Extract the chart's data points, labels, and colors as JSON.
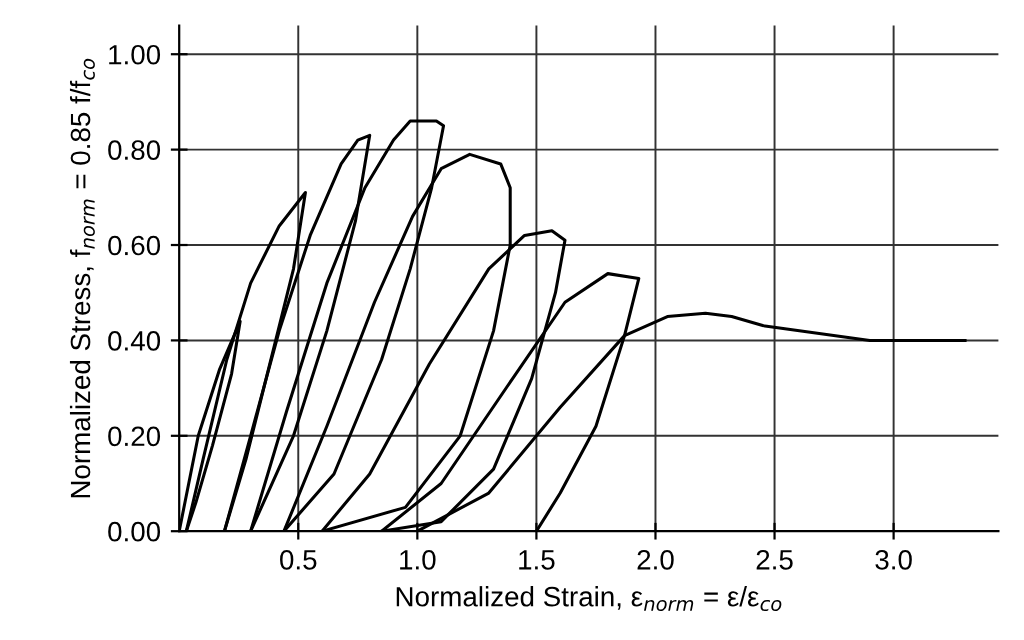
{
  "chart_data": {
    "type": "line",
    "xlabel": "Normalized Strain, ε$_{norm}$ = ε/ε$_{co}$",
    "ylabel": "Normalized Stress, f$_{norm}$ = 0.85 f/f$_{co}$",
    "xlim": [
      0,
      3.44
    ],
    "ylim": [
      0,
      1.06
    ],
    "xticks": [
      0.5,
      {
        "value": 1,
        "label": "1.0"
      },
      1.5,
      {
        "value": 2,
        "label": "2.0"
      },
      2.5,
      {
        "value": 3,
        "label": "3.0"
      }
    ],
    "yticks": [
      {
        "value": 0,
        "label": "0.00"
      },
      {
        "value": 0.2,
        "label": "0.20"
      },
      {
        "value": 0.4,
        "label": "0.40"
      },
      {
        "value": 0.6,
        "label": "0.60"
      },
      {
        "value": 0.8,
        "label": "0.80"
      },
      {
        "value": 1.0,
        "label": "1.00"
      }
    ],
    "grid": true,
    "marker": "none",
    "line_style": "solid",
    "series": [
      {
        "color": "#000000",
        "x": [
          0,
          0.08,
          0.17,
          0.256,
          0.22,
          0.14,
          0.07,
          0.03
        ],
        "values": [
          0,
          0.2,
          0.34,
          0.44,
          0.33,
          0.18,
          0.06,
          0
        ]
      },
      {
        "color": "#000000",
        "x": [
          0.03,
          0.1,
          0.2,
          0.3,
          0.42,
          0.53,
          0.48,
          0.38,
          0.28,
          0.19
        ],
        "values": [
          0,
          0.15,
          0.36,
          0.52,
          0.64,
          0.71,
          0.55,
          0.35,
          0.15,
          0
        ]
      },
      {
        "color": "#000000",
        "x": [
          0.19,
          0.3,
          0.42,
          0.55,
          0.68,
          0.75,
          0.8,
          0.74,
          0.62,
          0.48,
          0.3
        ],
        "values": [
          0,
          0.2,
          0.42,
          0.62,
          0.77,
          0.82,
          0.83,
          0.65,
          0.42,
          0.2,
          0
        ]
      },
      {
        "color": "#000000",
        "x": [
          0.3,
          0.45,
          0.62,
          0.78,
          0.9,
          0.97,
          1.08,
          1.11,
          1.06,
          0.97,
          0.85,
          0.65,
          0.44
        ],
        "values": [
          0,
          0.25,
          0.52,
          0.72,
          0.82,
          0.86,
          0.86,
          0.85,
          0.72,
          0.55,
          0.36,
          0.12,
          0
        ]
      },
      {
        "color": "#000000",
        "x": [
          0.44,
          0.62,
          0.82,
          0.98,
          1.1,
          1.22,
          1.35,
          1.39,
          1.39,
          1.32,
          1.18,
          0.95,
          0.6
        ],
        "values": [
          0,
          0.22,
          0.48,
          0.66,
          0.76,
          0.79,
          0.77,
          0.72,
          0.6,
          0.42,
          0.2,
          0.05,
          0
        ]
      },
      {
        "color": "#000000",
        "x": [
          0.6,
          0.8,
          1.05,
          1.3,
          1.45,
          1.565,
          1.62,
          1.58,
          1.48,
          1.32,
          1.1,
          0.85
        ],
        "values": [
          0,
          0.12,
          0.35,
          0.55,
          0.62,
          0.63,
          0.61,
          0.5,
          0.32,
          0.13,
          0.02,
          0
        ]
      },
      {
        "color": "#000000",
        "x": [
          0.85,
          1.1,
          1.4,
          1.62,
          1.8,
          1.93,
          1.87,
          1.75,
          1.6,
          1.5
        ],
        "values": [
          0,
          0.1,
          0.32,
          0.48,
          0.54,
          0.53,
          0.41,
          0.22,
          0.08,
          0
        ]
      },
      {
        "color": "#000000",
        "x": [
          1.0,
          1.3,
          1.6,
          1.87,
          2.05,
          2.21,
          2.32,
          2.46,
          2.9,
          3.3
        ],
        "values": [
          0,
          0.08,
          0.26,
          0.41,
          0.45,
          0.457,
          0.45,
          0.43,
          0.4,
          0.4
        ]
      }
    ]
  }
}
